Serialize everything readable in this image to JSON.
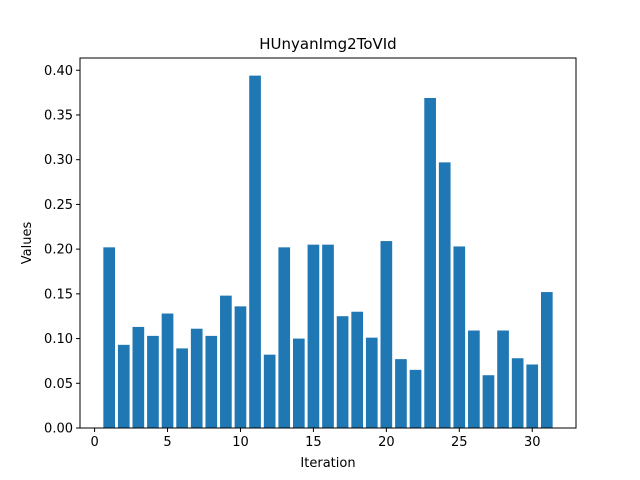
{
  "chart_data": {
    "type": "bar",
    "title": "HUnyanImg2ToVId",
    "xlabel": "Iteration",
    "ylabel": "Values",
    "x": [
      1,
      2,
      3,
      4,
      5,
      6,
      7,
      8,
      9,
      10,
      11,
      12,
      13,
      14,
      15,
      16,
      17,
      18,
      19,
      20,
      21,
      22,
      23,
      24,
      25,
      26,
      27,
      28,
      29,
      30,
      31
    ],
    "values": [
      0.202,
      0.093,
      0.113,
      0.103,
      0.128,
      0.089,
      0.111,
      0.103,
      0.148,
      0.136,
      0.394,
      0.082,
      0.202,
      0.1,
      0.205,
      0.205,
      0.125,
      0.13,
      0.101,
      0.209,
      0.077,
      0.065,
      0.369,
      0.297,
      0.203,
      0.109,
      0.059,
      0.109,
      0.078,
      0.071,
      0.152
    ],
    "xlim": [
      -1.0,
      33.0
    ],
    "ylim": [
      0.0,
      0.4137
    ],
    "xticks": [
      0,
      5,
      10,
      15,
      20,
      25,
      30
    ],
    "xtick_labels": [
      "0",
      "5",
      "10",
      "15",
      "20",
      "25",
      "30"
    ],
    "yticks": [
      0.0,
      0.05,
      0.1,
      0.15,
      0.2,
      0.25,
      0.3,
      0.35,
      0.4
    ],
    "ytick_labels": [
      "0.00",
      "0.05",
      "0.10",
      "0.15",
      "0.20",
      "0.25",
      "0.30",
      "0.35",
      "0.40"
    ],
    "grid": false,
    "bar_color": "#1f77b4"
  }
}
